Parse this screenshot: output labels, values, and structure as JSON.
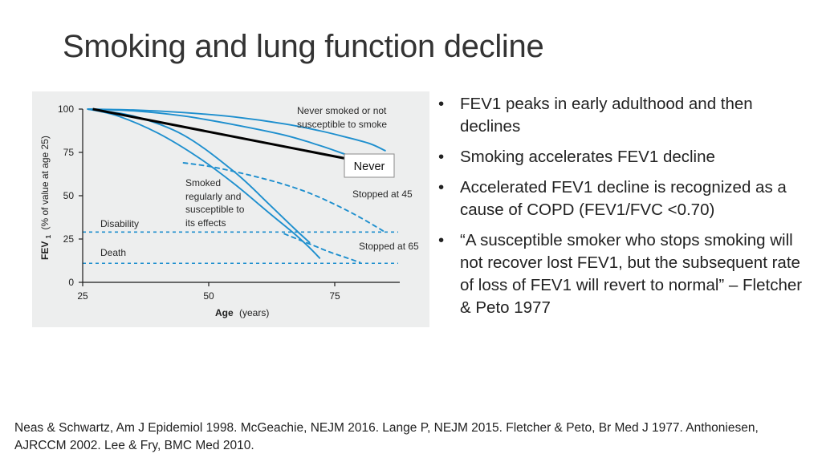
{
  "slide": {
    "title": "Smoking and lung function decline",
    "bullets": [
      "FEV1 peaks in early adulthood and then declines",
      "Smoking accelerates FEV1 decline",
      "Accelerated FEV1 decline is recognized as a cause of COPD (FEV1/FVC <0.70)",
      "“A susceptible smoker who stops smoking will not recover lost FEV1, but the subsequent rate of loss of FEV1 will revert to normal” – Fletcher & Peto 1977"
    ],
    "bullet_glyph": "•",
    "references": "Neas & Schwartz, Am J Epidemiol 1998. McGeachie, NEJM 2016. Lange P, NEJM 2015.   Fletcher & Peto, Br Med J 1977. Anthoniesen, AJRCCM 2002. Lee & Fry, BMC Med 2010."
  },
  "chart_data": {
    "type": "line",
    "xlabel_main": "Age",
    "xlabel_unit": "(years)",
    "ylabel_main": "FEV",
    "ylabel_sub": "1",
    "ylabel_unit": "(% of value at age 25)",
    "xlim": [
      25,
      87
    ],
    "ylim": [
      0,
      100
    ],
    "x_ticks": [
      25,
      50,
      75
    ],
    "y_ticks": [
      0,
      25,
      50,
      75,
      100
    ],
    "colors": {
      "curve": "#1e8fce",
      "overlay": "#000000",
      "reference": "#1e8fce",
      "background": "#edeeee"
    },
    "series": [
      {
        "name": "Never smoked or not susceptible to smoke",
        "style": "solid",
        "x": [
          26,
          35,
          45,
          55,
          65,
          72,
          77,
          82,
          85
        ],
        "y": [
          100,
          99.5,
          98,
          95.5,
          91.5,
          87.5,
          84,
          80,
          76
        ]
      },
      {
        "style": "solid",
        "x": [
          26,
          35,
          45,
          55,
          65,
          72,
          77,
          82,
          85
        ],
        "y": [
          100,
          99,
          96,
          91,
          85,
          79,
          74,
          69,
          64
        ]
      },
      {
        "name": "Smoked regularly and susceptible to its effects",
        "style": "solid",
        "x": [
          26,
          32,
          40,
          48,
          55,
          62,
          67,
          70,
          72
        ],
        "y": [
          100,
          96,
          86,
          72,
          57,
          40,
          28,
          20,
          14
        ]
      },
      {
        "style": "solid",
        "x": [
          26,
          35,
          45,
          55,
          62,
          67,
          70
        ],
        "y": [
          100,
          96,
          85,
          64,
          45,
          31,
          23
        ]
      },
      {
        "name": "Stopped at 45",
        "style": "dashed",
        "x": [
          45,
          50,
          55,
          60,
          65,
          70,
          75,
          80,
          85
        ],
        "y": [
          69,
          67,
          64,
          60.5,
          56.5,
          51.5,
          45,
          37.5,
          29
        ]
      },
      {
        "name": "Stopped at 65",
        "style": "dashed",
        "x": [
          65,
          68,
          71,
          74,
          77,
          80
        ],
        "y": [
          28,
          24.5,
          21,
          17.5,
          14.5,
          11.5
        ]
      }
    ],
    "overlay_line": {
      "x": [
        27,
        85
      ],
      "y": [
        100,
        67
      ]
    },
    "reference_lines": [
      {
        "name": "Disability",
        "y": 29
      },
      {
        "name": "Death",
        "y": 11
      }
    ],
    "annotation_box": "Never",
    "annotations": {
      "never": [
        "Never smoked or not",
        "susceptible to smoke"
      ],
      "smoked": [
        "Smoked",
        "regularly and",
        "susceptible to",
        "its effects"
      ],
      "stopped45": "Stopped at 45",
      "stopped65": "Stopped at 65",
      "disability": "Disability",
      "death": "Death"
    }
  }
}
